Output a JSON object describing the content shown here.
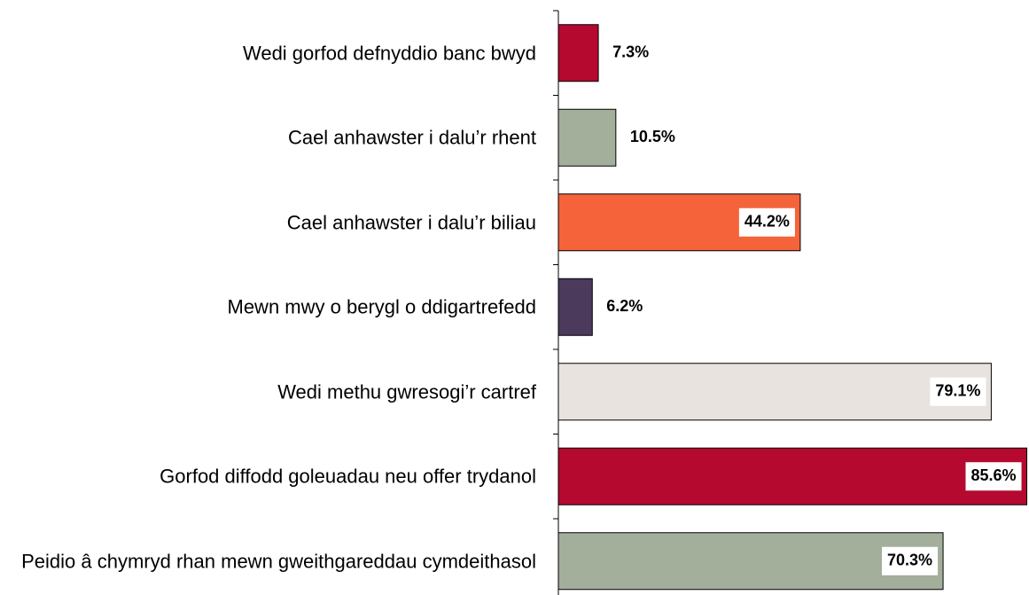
{
  "chart_data": {
    "type": "bar",
    "orientation": "horizontal",
    "categories": [
      "Wedi gorfod defnyddio banc bwyd",
      "Cael anhawster i dalu’r rhent",
      "Cael anhawster i dalu’r biliau",
      "Mewn mwy o berygl o ddigartrefedd",
      "Wedi methu gwresogi’r cartref",
      "Gorfod diffodd goleuadau neu offer trydanol",
      "Peidio â chymryd rhan mewn gweithgareddau cymdeithasol"
    ],
    "values": [
      7.3,
      10.5,
      44.2,
      6.2,
      79.1,
      85.6,
      70.3
    ],
    "value_labels": [
      "7.3%",
      "10.5%",
      "44.2%",
      "6.2%",
      "79.1%",
      "85.6%",
      "70.3%"
    ],
    "colors": [
      "#b5092f",
      "#a3ae9b",
      "#f4633a",
      "#4b3a5c",
      "#e8e3df",
      "#b5092f",
      "#a3ae9b"
    ],
    "xlim": [
      0,
      86
    ]
  }
}
